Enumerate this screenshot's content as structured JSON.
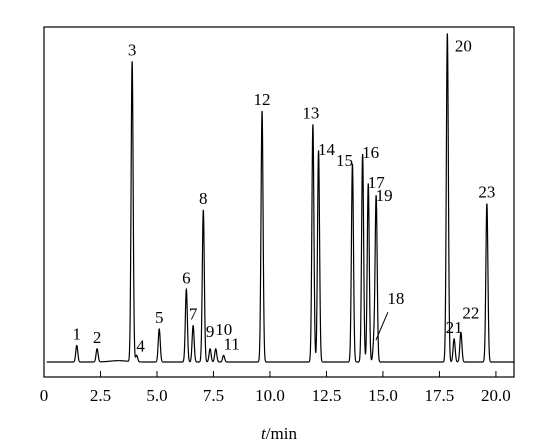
{
  "chart_data": {
    "type": "line",
    "title": "",
    "xlabel_italic": "t",
    "xlabel_unit": "/min",
    "ylabel": "",
    "xlim": [
      0,
      20.8
    ],
    "xticks": [
      0,
      2.5,
      5.0,
      7.5,
      10.0,
      12.5,
      15.0,
      17.5,
      20.0
    ],
    "xtick_labels": [
      "0",
      "2.5",
      "5.0",
      "7.5",
      "10.0",
      "12.5",
      "15.0",
      "17.5",
      "20.0"
    ],
    "ylim": [
      0,
      1.0
    ],
    "grid": false,
    "legend": "none",
    "line_color": "#000000",
    "peaks": [
      {
        "label": "1",
        "x": 1.45,
        "y": 0.05
      },
      {
        "label": "2",
        "x": 2.35,
        "y": 0.04
      },
      {
        "label": "3",
        "x": 3.9,
        "y": 0.91
      },
      {
        "label": "4",
        "x": 4.1,
        "y": 0.02
      },
      {
        "label": "5",
        "x": 5.1,
        "y": 0.1
      },
      {
        "label": "6",
        "x": 6.3,
        "y": 0.22
      },
      {
        "label": "7",
        "x": 6.6,
        "y": 0.11
      },
      {
        "label": "8",
        "x": 7.05,
        "y": 0.46
      },
      {
        "label": "9",
        "x": 7.35,
        "y": 0.04
      },
      {
        "label": "10",
        "x": 7.6,
        "y": 0.04
      },
      {
        "label": "11",
        "x": 7.95,
        "y": 0.02
      },
      {
        "label": "12",
        "x": 9.65,
        "y": 0.76
      },
      {
        "label": "13",
        "x": 11.9,
        "y": 0.72
      },
      {
        "label": "14",
        "x": 12.15,
        "y": 0.64
      },
      {
        "label": "15",
        "x": 13.65,
        "y": 0.6
      },
      {
        "label": "16",
        "x": 14.1,
        "y": 0.63
      },
      {
        "label": "17",
        "x": 14.35,
        "y": 0.54
      },
      {
        "label": "18",
        "x": 14.6,
        "y": 0.06
      },
      {
        "label": "19",
        "x": 14.7,
        "y": 0.5
      },
      {
        "label": "20",
        "x": 17.85,
        "y": 0.995
      },
      {
        "label": "21",
        "x": 18.15,
        "y": 0.07
      },
      {
        "label": "22",
        "x": 18.45,
        "y": 0.09
      },
      {
        "label": "23",
        "x": 19.6,
        "y": 0.48
      }
    ]
  }
}
